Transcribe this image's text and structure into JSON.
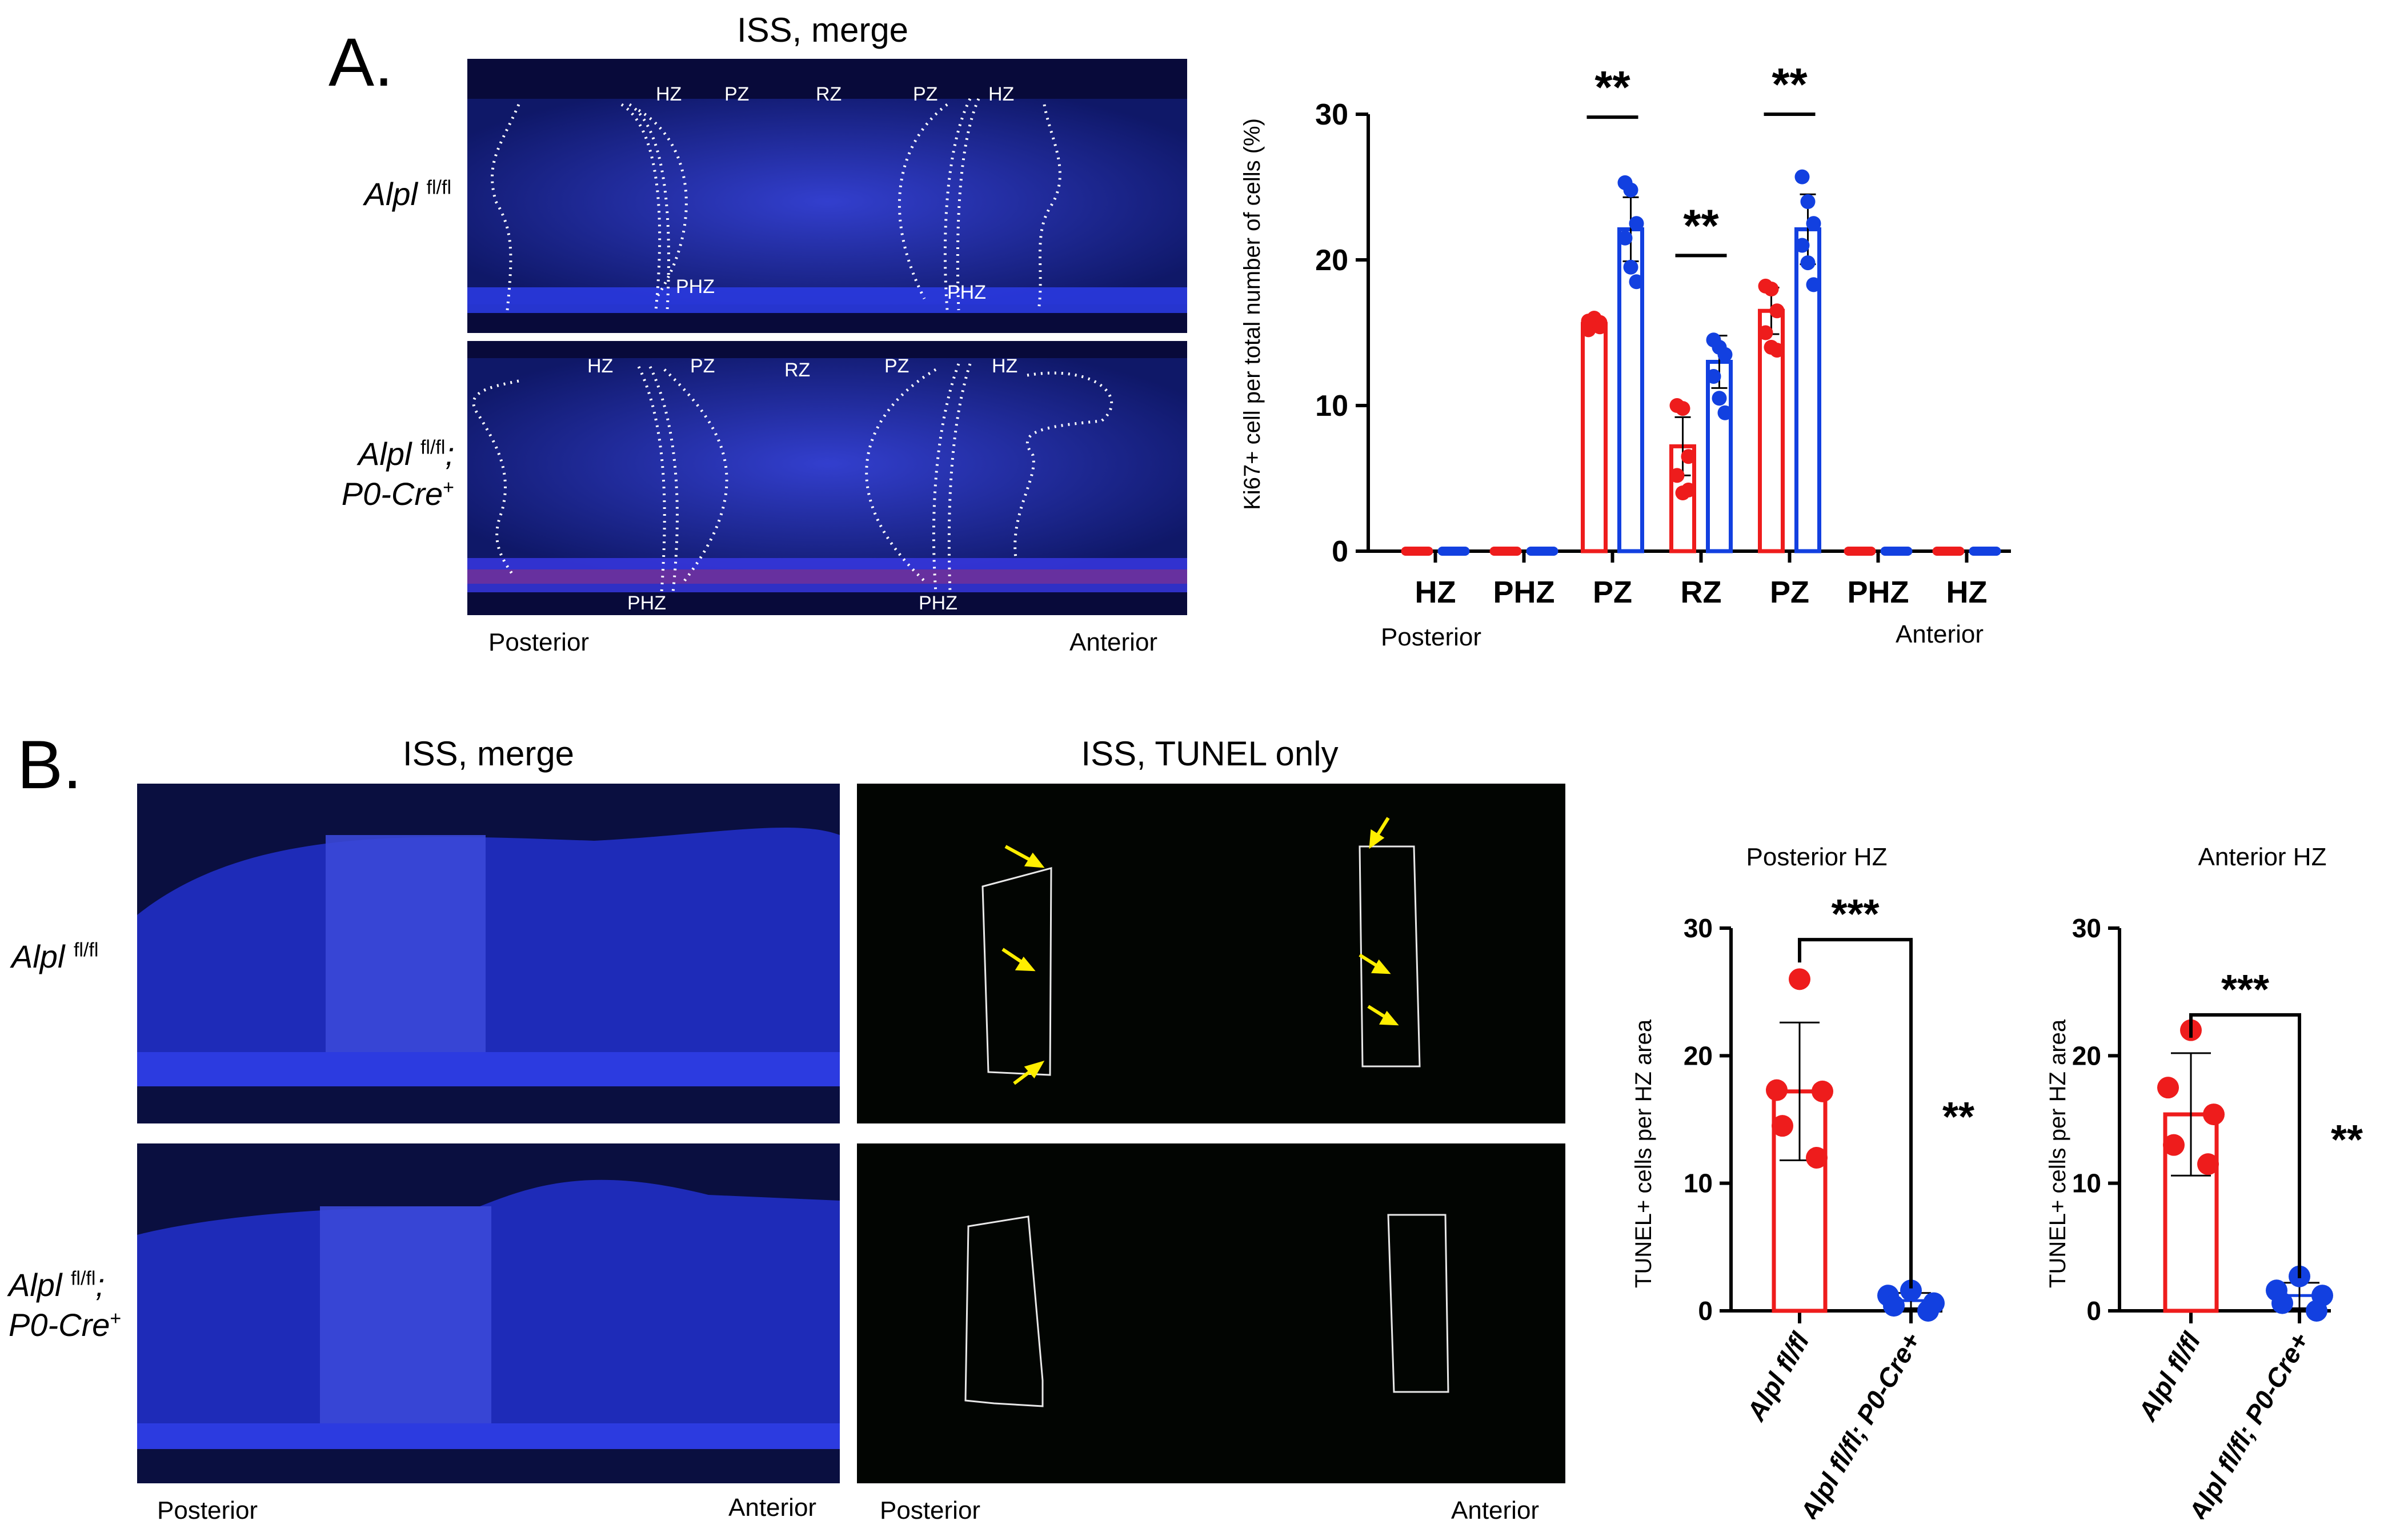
{
  "panel_a": {
    "letter": "A.",
    "image_title": "ISS, merge",
    "row_top": {
      "name": "Alpl",
      "sup": "fl/fl"
    },
    "row_bottom": {
      "name": "Alpl",
      "sup": "fl/fl",
      "sep": ";",
      "name2": "P0-Cre",
      "sup2": "+"
    },
    "zone_labels_top": [
      "HZ",
      "PZ",
      "RZ",
      "PZ",
      "HZ"
    ],
    "zone_labels_bottom_phz": [
      "PHZ",
      "PHZ"
    ],
    "direction_left": "Posterior",
    "direction_right": "Anterior",
    "chart_direction_left": "Posterior",
    "chart_direction_right": "Anterior"
  },
  "panel_b": {
    "letter": "B.",
    "image_title_left": "ISS, merge",
    "image_title_right": "ISS, TUNEL only",
    "row_top": {
      "name": "Alpl",
      "sup": "fl/fl"
    },
    "row_bottom": {
      "name": "Alpl",
      "sup": "fl/fl",
      "sep": ";",
      "name2": "P0-Cre",
      "sup2": "+"
    },
    "direction_left": "Posterior",
    "direction_right": "Anterior"
  },
  "colors": {
    "control": "#ee1c1c",
    "mutant": "#1240e0",
    "dapi": "#1a2acc",
    "tunel": "#22dd33",
    "arrow": "#ffee00"
  },
  "chart_data": [
    {
      "type": "bar",
      "ylabel": "Ki67+ cell per total number of cells (%)",
      "ylim": [
        0,
        30
      ],
      "yticks": [
        "0",
        "10",
        "20",
        "30"
      ],
      "categories": [
        "HZ",
        "PHZ",
        "PZ",
        "RZ",
        "PZ",
        "PHZ",
        "HZ"
      ],
      "series": [
        {
          "key": "control",
          "color": "#ee1c1c",
          "values": [
            0,
            0,
            15.6,
            7.2,
            16.5,
            0,
            0
          ],
          "err": [
            0,
            0,
            0.3,
            2.0,
            1.6,
            0,
            0
          ]
        },
        {
          "key": "mutant",
          "color": "#1240e0",
          "values": [
            0,
            0,
            22.1,
            13.0,
            22.1,
            0,
            0
          ],
          "err": [
            0,
            0,
            2.2,
            1.8,
            2.4,
            0,
            0
          ]
        }
      ],
      "points": [
        [
          [
            0,
            0,
            0,
            0,
            0,
            0
          ],
          [
            0,
            0,
            0,
            0,
            0,
            0
          ],
          [
            15.2,
            15.5,
            15.7,
            15.8,
            16.0,
            15.4
          ],
          [
            10.0,
            9.8,
            6.5,
            5.2,
            4.0,
            4.2
          ],
          [
            18.2,
            18.0,
            16.5,
            15.0,
            14.0,
            13.8
          ],
          [
            0,
            0,
            0,
            0,
            0,
            0
          ],
          [
            0,
            0,
            0,
            0,
            0,
            0
          ]
        ],
        [
          [
            0,
            0,
            0,
            0,
            0,
            0
          ],
          [
            0,
            0,
            0,
            0,
            0,
            0
          ],
          [
            25.3,
            24.8,
            22.5,
            21.5,
            19.5,
            18.5
          ],
          [
            14.5,
            14.0,
            13.5,
            12.0,
            10.5,
            9.5
          ],
          [
            25.7,
            24.0,
            22.5,
            21.0,
            19.8,
            18.3
          ],
          [
            0,
            0,
            0,
            0,
            0,
            0
          ],
          [
            0,
            0,
            0,
            0,
            0,
            0
          ]
        ]
      ],
      "significance": [
        {
          "category_index": 2,
          "label": "**"
        },
        {
          "category_index": 3,
          "label": "**"
        },
        {
          "category_index": 4,
          "label": "**"
        }
      ],
      "direction_left": "Posterior",
      "direction_right": "Anterior"
    },
    {
      "type": "bar",
      "title": "Posterior HZ",
      "ylabel": "TUNEL+ cells per HZ area",
      "ylim": [
        0,
        30
      ],
      "yticks": [
        "0",
        "10",
        "20",
        "30"
      ],
      "categories": [
        "Alpl fl/fl",
        "Alpl fl/fl; P0-Cre+"
      ],
      "values": [
        17.2,
        0.8
      ],
      "err": [
        5.4,
        0.6
      ],
      "points": [
        [
          26.0,
          17.3,
          17.2,
          14.5,
          12.0
        ],
        [
          1.6,
          1.2,
          0.6,
          0.4,
          0.0
        ]
      ],
      "significance": [
        {
          "label": "***"
        },
        {
          "label": "**"
        }
      ]
    },
    {
      "type": "bar",
      "title": "Anterior HZ",
      "ylabel": "TUNEL+ cells per HZ area",
      "ylim": [
        0,
        30
      ],
      "yticks": [
        "0",
        "10",
        "20",
        "30"
      ],
      "categories": [
        "Alpl fl/fl",
        "Alpl fl/fl; P0-Cre+"
      ],
      "values": [
        15.4,
        1.2
      ],
      "err": [
        4.8,
        1.0
      ],
      "points": [
        [
          22.0,
          17.5,
          15.4,
          13.0,
          11.5
        ],
        [
          2.7,
          1.6,
          1.2,
          0.6,
          0.0
        ]
      ],
      "significance": [
        {
          "label": "***"
        },
        {
          "label": "**"
        }
      ]
    }
  ]
}
